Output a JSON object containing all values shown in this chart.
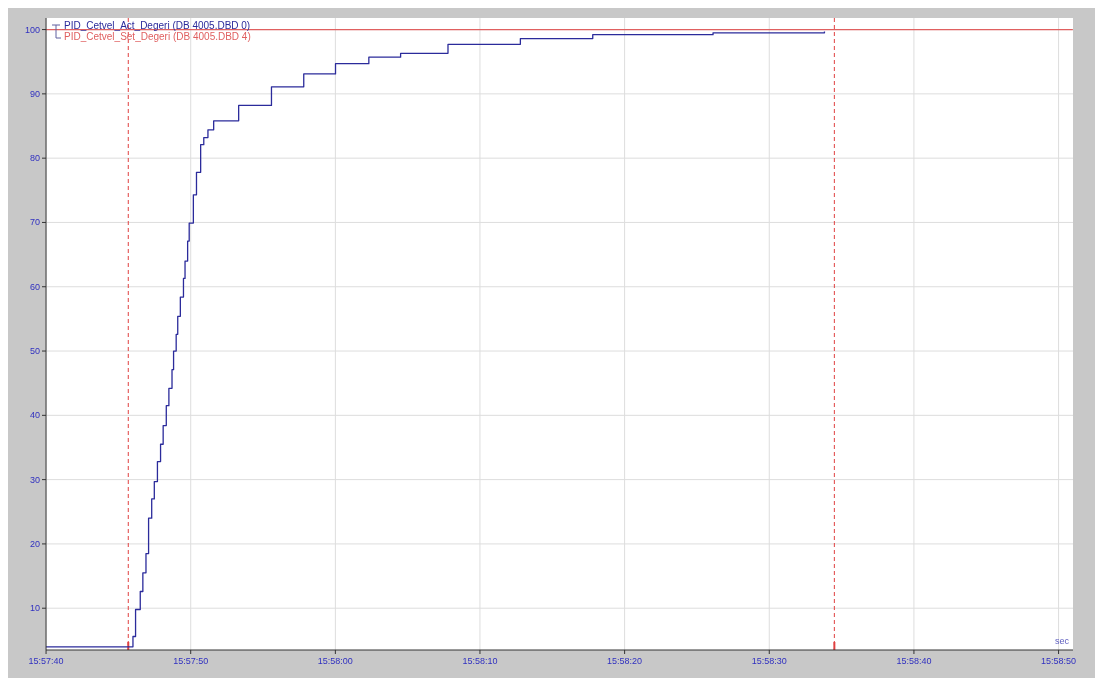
{
  "chart_data": {
    "type": "step",
    "xlabel": "sec",
    "xlim": [
      15.96111,
      15.980833
    ],
    "ylim": [
      3.5,
      101.8
    ],
    "xticks": [
      {
        "value": 15.961111,
        "label": "15:57:40"
      },
      {
        "value": 15.963889,
        "label": "15:57:50"
      },
      {
        "value": 15.966667,
        "label": "15:58:00"
      },
      {
        "value": 15.969444,
        "label": "15:58:10"
      },
      {
        "value": 15.972222,
        "label": "15:58:20"
      },
      {
        "value": 15.975,
        "label": "15:58:30"
      },
      {
        "value": 15.977778,
        "label": "15:58:40"
      },
      {
        "value": 15.980556,
        "label": "15:58:50"
      }
    ],
    "yticks": [
      10,
      20,
      30,
      40,
      50,
      60,
      70,
      80,
      90,
      100
    ],
    "grid": true,
    "legend": "top left",
    "marker": "none",
    "line_style": "solid",
    "series": [
      {
        "name": "PID_Cetvel_Act_Degeri (DB 4005.DBD 0)",
        "color": "#2b2b9b",
        "x": [
          15.96111,
          15.96278,
          15.96283,
          15.96292,
          15.96297,
          15.96303,
          15.96308,
          15.96314,
          15.96319,
          15.96325,
          15.96331,
          15.96336,
          15.96342,
          15.96347,
          15.96353,
          15.96356,
          15.96361,
          15.96364,
          15.96369,
          15.96375,
          15.96378,
          15.96383,
          15.96386,
          15.96394,
          15.964,
          15.96408,
          15.96414,
          15.96422,
          15.96433,
          15.96481,
          15.96544,
          15.96606,
          15.96667,
          15.96731,
          15.96792,
          15.96883,
          15.97022,
          15.97161,
          15.97392,
          15.97606
        ],
        "values": [
          4,
          5.6,
          9.8,
          12.6,
          15.5,
          18.5,
          24,
          27,
          29.7,
          32.8,
          35.5,
          38.4,
          41.5,
          44.2,
          47.1,
          50,
          52.6,
          55.4,
          58.4,
          61.3,
          64,
          67.1,
          69.9,
          74.3,
          77.8,
          82.1,
          83.2,
          84.4,
          85.8,
          88.2,
          91.1,
          93.1,
          94.7,
          95.7,
          96.3,
          97.7,
          98.6,
          99.2,
          99.5,
          99.7
        ]
      },
      {
        "name": "PID_Cetvel_Set_Degeri (DB 4005.DBD 4)",
        "color": "#e06060",
        "x": [
          15.96111,
          15.98083
        ],
        "values": [
          100,
          100
        ]
      }
    ],
    "ref_lines": [
      {
        "axis": "x",
        "value": 15.96269,
        "color": "#e04040",
        "line_style": "dashed"
      },
      {
        "axis": "x",
        "value": 15.97625,
        "color": "#e04040",
        "line_style": "dashed"
      }
    ]
  }
}
